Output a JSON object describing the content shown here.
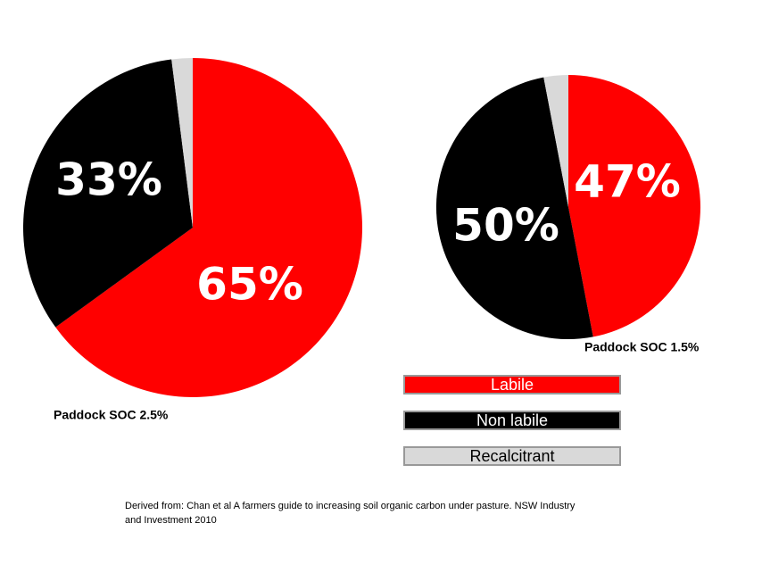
{
  "chart_data": [
    {
      "type": "pie",
      "title": "Paddock SOC 2.5%",
      "values": [
        65,
        33,
        2
      ],
      "value_labels": [
        "65%",
        "33%",
        null
      ],
      "colors": [
        "#ff0000",
        "#000000",
        "#d9d9d9"
      ]
    },
    {
      "type": "pie",
      "title": "Paddock SOC 1.5%",
      "values": [
        47,
        50,
        3
      ],
      "value_labels": [
        "47%",
        "50%",
        null
      ],
      "colors": [
        "#ff0000",
        "#000000",
        "#d9d9d9"
      ]
    }
  ],
  "legend": [
    {
      "name": "Labile",
      "color": "#ff0000"
    },
    {
      "name": "Non labile",
      "color": "#000000"
    },
    {
      "name": "Recalcitrant",
      "color": "#d9d9d9"
    }
  ],
  "source": [
    "Derived from: Chan et al A farmers guide to increasing soil organic carbon under pasture. NSW Industry",
    "and Investment 2010"
  ]
}
